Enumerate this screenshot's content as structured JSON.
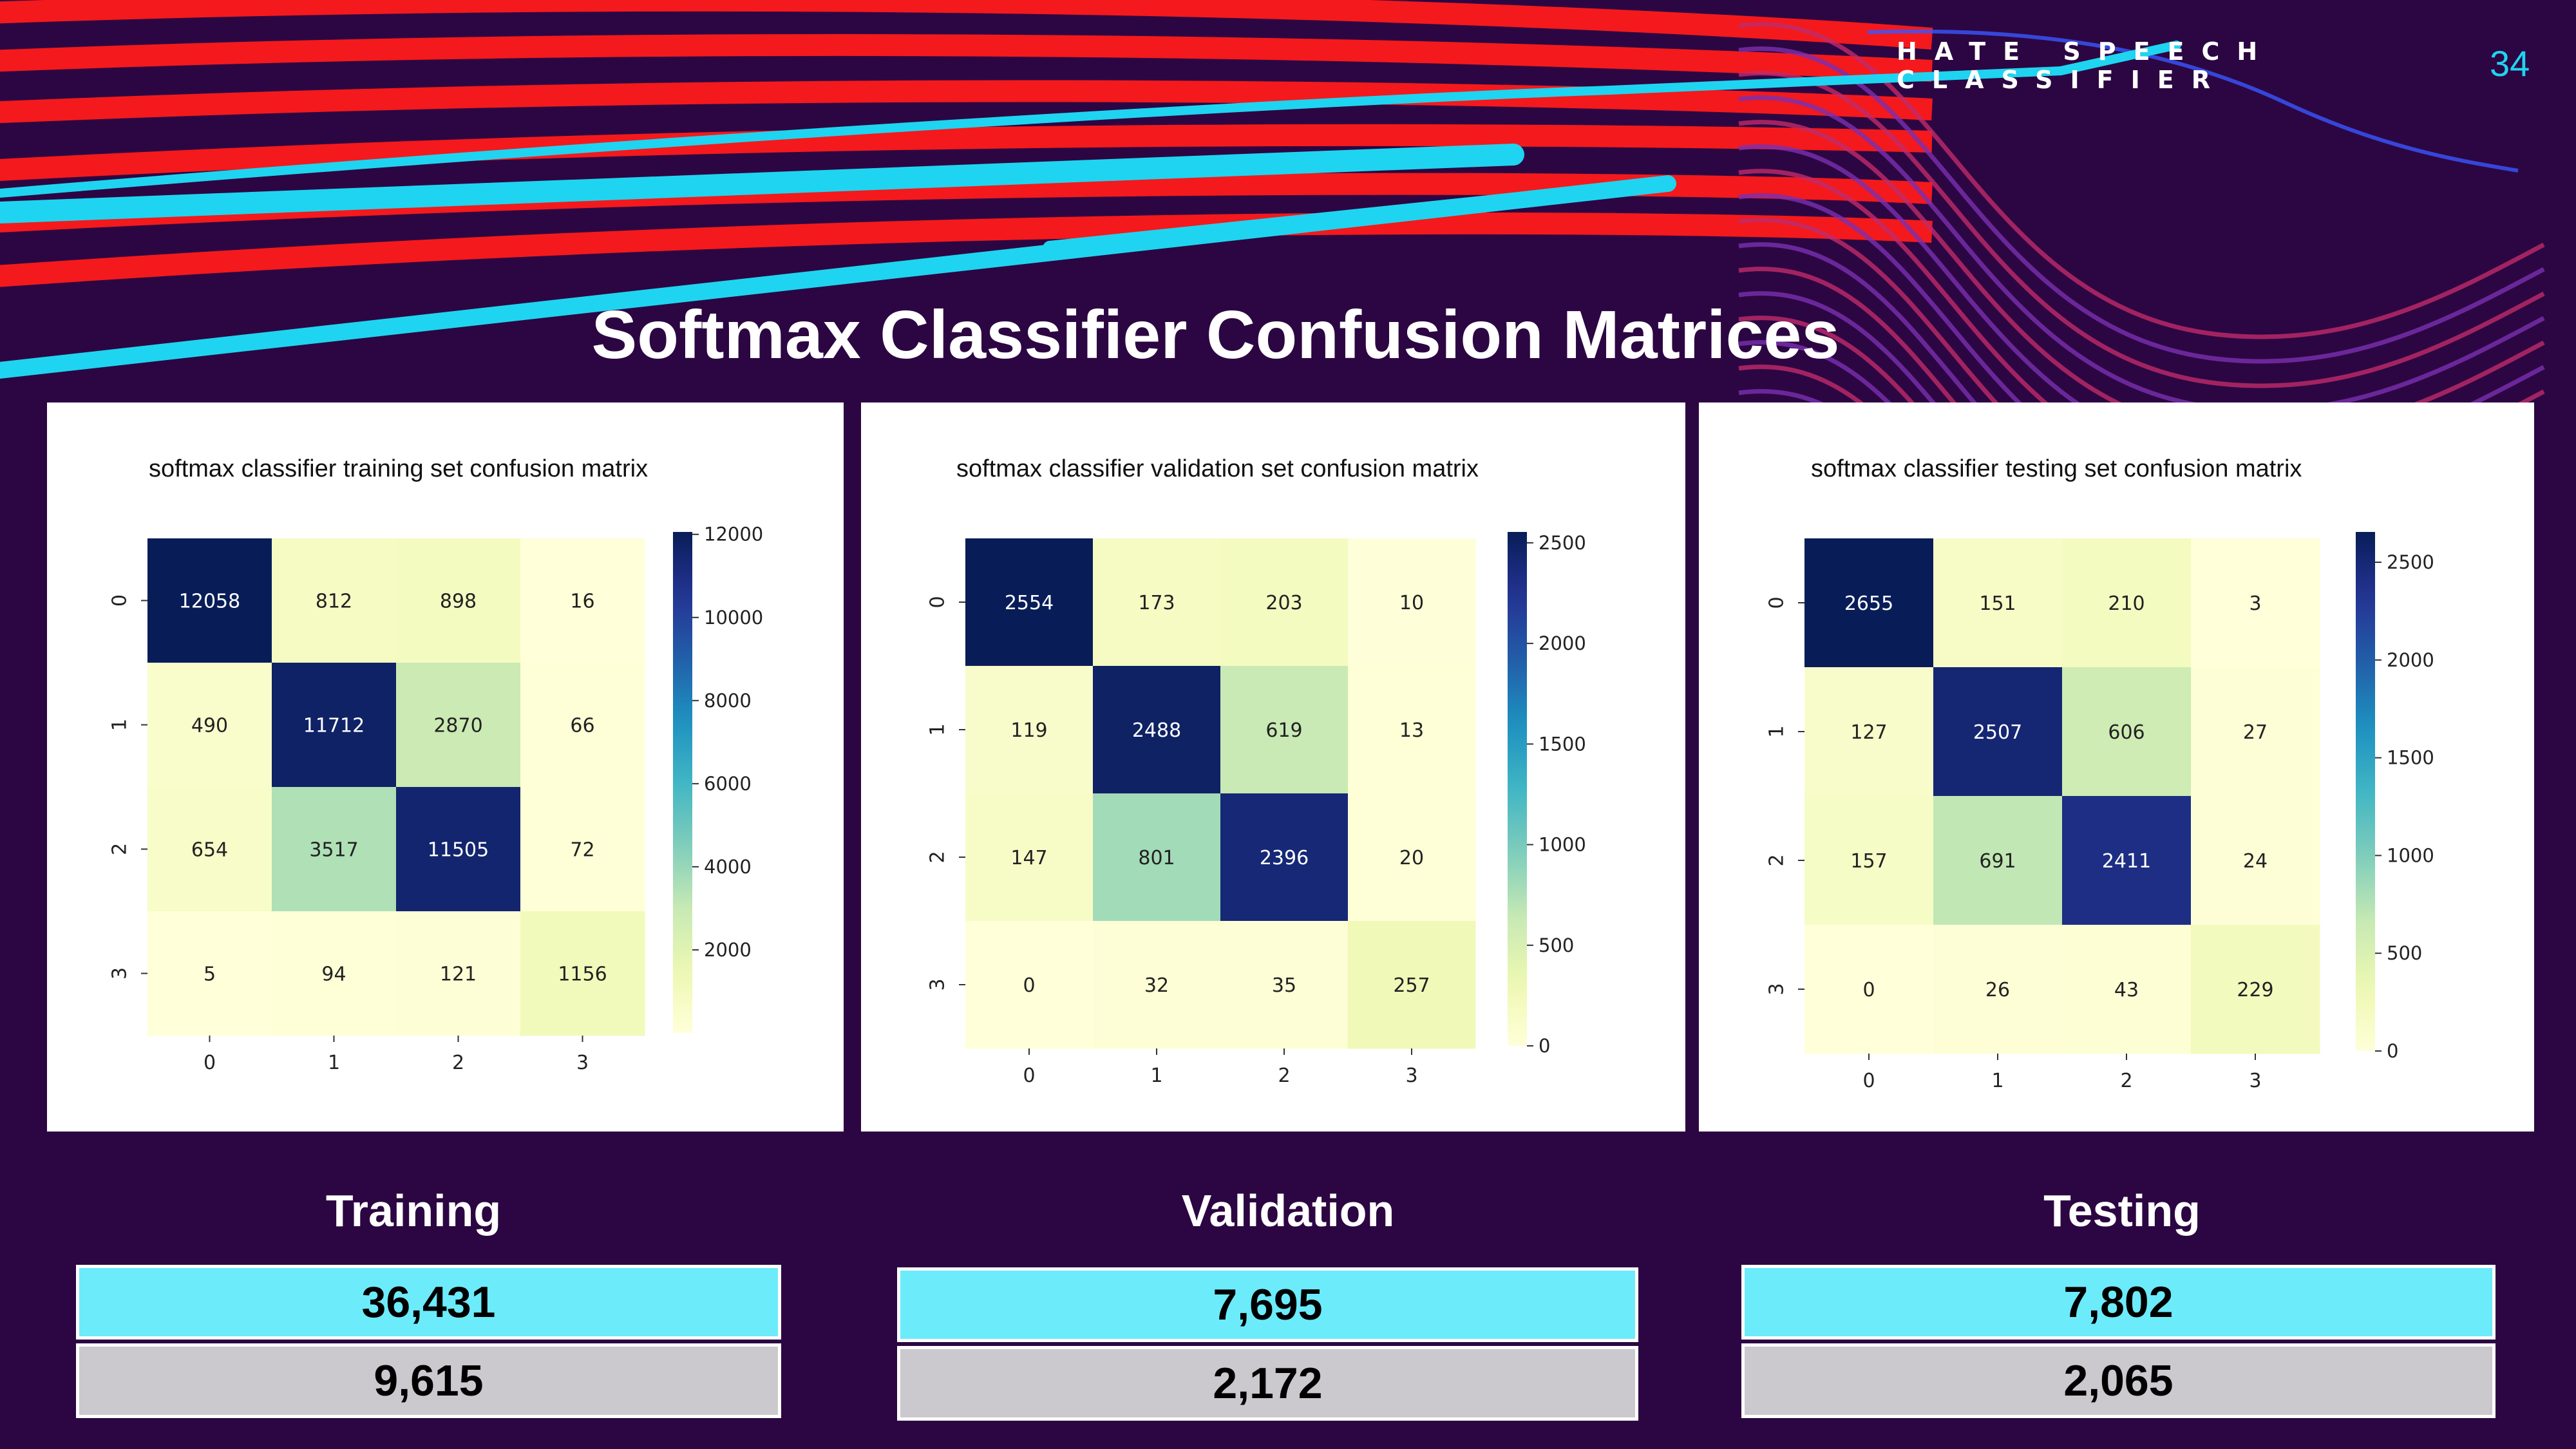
{
  "header": {
    "brand": "HATE SPEECH CLASSIFIER",
    "slide_number": "34",
    "title": "Softmax Classifier Confusion Matrices"
  },
  "colors": {
    "background": "#2c0642",
    "accent_cyan": "#1fd4f0",
    "accent_red": "#ff1a1a",
    "correct_box": "#6cebfb",
    "wrong_box": "#cbc8ce",
    "colormap": "YlGnBu"
  },
  "chart_data": [
    {
      "type": "heatmap",
      "title": "softmax classifier training set confusion matrix",
      "x_ticks": [
        "0",
        "1",
        "2",
        "3"
      ],
      "y_ticks": [
        "0",
        "1",
        "2",
        "3"
      ],
      "matrix": [
        [
          12058,
          812,
          898,
          16
        ],
        [
          490,
          11712,
          2870,
          66
        ],
        [
          654,
          3517,
          11505,
          72
        ],
        [
          5,
          94,
          121,
          1156
        ]
      ],
      "colorbar": {
        "min": 0,
        "max": 12058,
        "ticks": [
          2000,
          4000,
          6000,
          8000,
          10000,
          12000
        ]
      }
    },
    {
      "type": "heatmap",
      "title": "softmax classifier validation set confusion matrix",
      "x_ticks": [
        "0",
        "1",
        "2",
        "3"
      ],
      "y_ticks": [
        "0",
        "1",
        "2",
        "3"
      ],
      "matrix": [
        [
          2554,
          173,
          203,
          10
        ],
        [
          119,
          2488,
          619,
          13
        ],
        [
          147,
          801,
          2396,
          20
        ],
        [
          0,
          32,
          35,
          257
        ]
      ],
      "colorbar": {
        "min": 0,
        "max": 2554,
        "ticks": [
          0,
          500,
          1000,
          1500,
          2000,
          2500
        ]
      }
    },
    {
      "type": "heatmap",
      "title": "softmax classifier testing set confusion matrix",
      "x_ticks": [
        "0",
        "1",
        "2",
        "3"
      ],
      "y_ticks": [
        "0",
        "1",
        "2",
        "3"
      ],
      "matrix": [
        [
          2655,
          151,
          210,
          3
        ],
        [
          127,
          2507,
          606,
          27
        ],
        [
          157,
          691,
          2411,
          24
        ],
        [
          0,
          26,
          43,
          229
        ]
      ],
      "colorbar": {
        "min": 0,
        "max": 2655,
        "ticks": [
          0,
          500,
          1000,
          1500,
          2000,
          2500
        ]
      }
    }
  ],
  "summary": [
    {
      "label": "Training",
      "correct": "36,431",
      "incorrect": "9,615"
    },
    {
      "label": "Validation",
      "correct": "7,695",
      "incorrect": "2,172"
    },
    {
      "label": "Testing",
      "correct": "7,802",
      "incorrect": "2,065"
    }
  ]
}
